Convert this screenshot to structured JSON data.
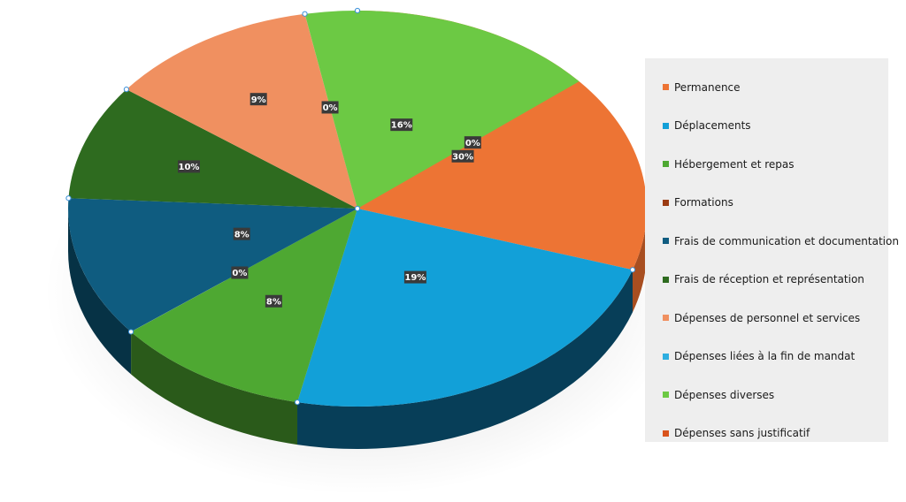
{
  "chart_data": {
    "type": "pie",
    "variant": "3d",
    "title": "",
    "legend_position": "right",
    "slices": [
      {
        "name": "Permanence",
        "value": 30,
        "label": "30%",
        "color": "#ed7434",
        "side_color": "#a84e20"
      },
      {
        "name": "Déplacements",
        "value": 19,
        "label": "19%",
        "color": "#12a0d8",
        "side_color": "#073e58"
      },
      {
        "name": "Hébergement et repas",
        "value": 8,
        "label": "8%",
        "color": "#4ea832",
        "side_color": "#2a5a1a"
      },
      {
        "name": "Formations",
        "value": 0,
        "label": "0%",
        "color": "#9b3b12",
        "side_color": "#5e230a"
      },
      {
        "name": "Frais de communication et documentation",
        "value": 8,
        "label": "8%",
        "color": "#0f5c80",
        "side_color": "#063245"
      },
      {
        "name": "Frais de réception et représentation",
        "value": 10,
        "label": "10%",
        "color": "#2e6b1f",
        "side_color": "#1a3f11"
      },
      {
        "name": "Dépenses de personnel et services",
        "value": 9,
        "label": "9%",
        "color": "#f09060",
        "side_color": "#a85e38"
      },
      {
        "name": "Dépenses liées à la fin de mandat",
        "value": 0,
        "label": "0%",
        "color": "#2eaee0",
        "side_color": "#125a78"
      },
      {
        "name": "Dépenses diverses",
        "value": 16,
        "label": "16%",
        "color": "#6cc944",
        "side_color": "#3c7a22"
      },
      {
        "name": "Dépenses sans justificatif",
        "value": 0,
        "label": "0%",
        "color": "#d9531c",
        "side_color": "#7a2c0c"
      }
    ]
  }
}
